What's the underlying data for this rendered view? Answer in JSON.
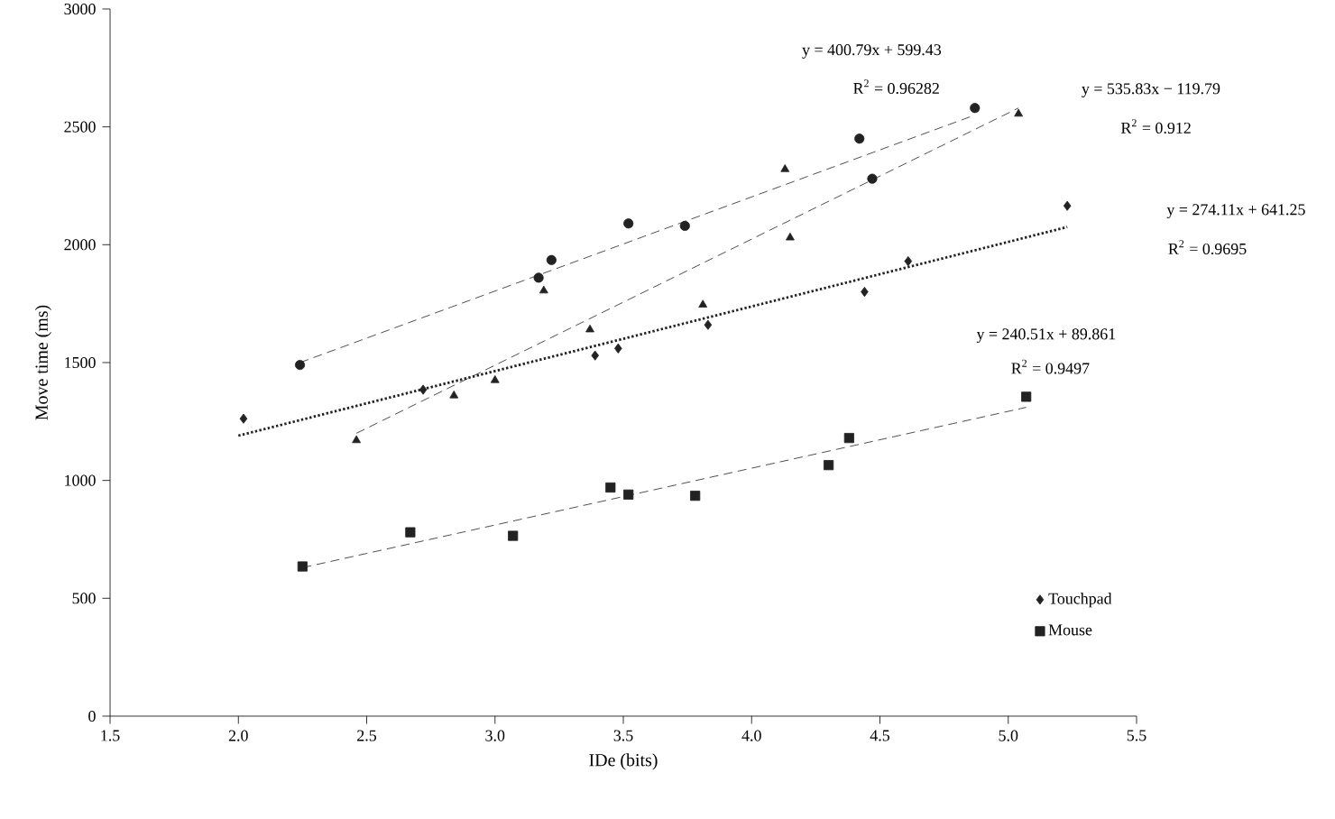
{
  "chart_data": {
    "type": "scatter",
    "xlabel": "IDe (bits)",
    "ylabel": "Move time (ms)",
    "xlim": [
      1.5,
      5.5
    ],
    "ylim": [
      0,
      3000
    ],
    "xticks": [
      1.5,
      {
        "value": 2,
        "label": "2.0"
      },
      2.5,
      {
        "value": 3,
        "label": "3.0"
      },
      3.5,
      {
        "value": 4,
        "label": "4.0"
      },
      4.5,
      {
        "value": 5,
        "label": "5.0"
      },
      5.5
    ],
    "yticks": [
      0,
      500,
      1000,
      1500,
      2000,
      2500,
      3000
    ],
    "grid": false,
    "legend": "bottom right",
    "series": [
      {
        "marker": "circle",
        "color": "#222222",
        "x": [
          2.24,
          3.17,
          3.22,
          3.52,
          3.74,
          4.42,
          4.47,
          4.87
        ],
        "values": [
          1490,
          1860,
          1935,
          2090,
          2080,
          2450,
          2280,
          2580
        ]
      },
      {
        "marker": "triangle",
        "color": "#222222",
        "x": [
          2.46,
          2.84,
          3.0,
          3.19,
          3.37,
          3.81,
          4.13,
          4.15,
          5.04
        ],
        "values": [
          1170,
          1360,
          1425,
          1805,
          1640,
          1745,
          2320,
          2030,
          2555
        ]
      },
      {
        "name": "Touchpad",
        "marker": "diamond",
        "color": "#222222",
        "x": [
          2.02,
          2.72,
          3.39,
          3.48,
          3.83,
          4.44,
          4.61,
          5.23
        ],
        "values": [
          1262,
          1385,
          1530,
          1560,
          1660,
          1800,
          1930,
          2165
        ]
      },
      {
        "name": "Mouse",
        "marker": "square",
        "color": "#222222",
        "x": [
          2.25,
          2.67,
          3.07,
          3.45,
          3.52,
          3.78,
          4.3,
          4.38,
          5.07
        ],
        "values": [
          635,
          780,
          765,
          970,
          940,
          935,
          1065,
          1180,
          1355
        ]
      },
      {
        "type": "line",
        "marker": "none",
        "line_style": "dashed",
        "color": "#222222",
        "x": [
          2.24,
          4.87
        ],
        "values": [
          1500,
          2550
        ]
      },
      {
        "type": "line",
        "marker": "none",
        "line_style": "dashed",
        "color": "#222222",
        "x": [
          2.46,
          5.04
        ],
        "values": [
          1200,
          2580
        ]
      },
      {
        "type": "line",
        "marker": "none",
        "line_style": "dotted",
        "color": "#222222",
        "x": [
          2.0,
          5.23
        ],
        "values": [
          1190,
          2075
        ]
      },
      {
        "type": "line",
        "marker": "none",
        "line_style": "dashed",
        "color": "#222222",
        "x": [
          2.25,
          5.07
        ],
        "values": [
          630,
          1310
        ]
      }
    ],
    "annotations": [
      "y = 400.79x + 599.43",
      "R$^{2}$ = 0.96282",
      "y = 535.83x − 119.79",
      "R$^{2}$ = 0.912",
      "y = 274.11x + 641.25",
      "R$^{2}$ = 0.9695",
      "y = 240.51x + 89.861",
      "R$^{2}$ = 0.9497"
    ]
  }
}
